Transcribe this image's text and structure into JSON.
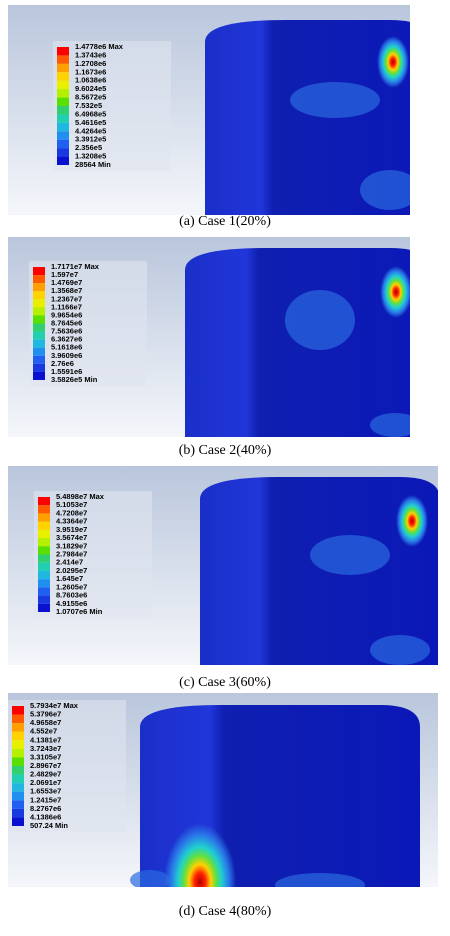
{
  "panels": [
    {
      "caption": "(a)  Case  1(20%)",
      "legend": [
        "1.4778e6 Max",
        "1.3743e6",
        "1.2708e6",
        "1.1673e6",
        "1.0638e6",
        "9.6024e5",
        "8.5672e5",
        "7.532e5",
        "6.4968e5",
        "5.4616e5",
        "4.4264e5",
        "3.3912e5",
        "2.356e5",
        "1.3208e5",
        "28564 Min"
      ]
    },
    {
      "caption": "(b)  Case  2(40%)",
      "legend": [
        "1.7171e7 Max",
        "1.597e7",
        "1.4769e7",
        "1.3568e7",
        "1.2367e7",
        "1.1166e7",
        "9.9654e6",
        "8.7645e6",
        "7.5636e6",
        "6.3627e6",
        "5.1618e6",
        "3.9609e6",
        "2.76e6",
        "1.5591e6",
        "3.5826e5 Min"
      ]
    },
    {
      "caption": "(c)  Case  3(60%)",
      "legend": [
        "5.4898e7 Max",
        "5.1053e7",
        "4.7208e7",
        "4.3364e7",
        "3.9519e7",
        "3.5674e7",
        "3.1829e7",
        "2.7984e7",
        "2.414e7",
        "2.0295e7",
        "1.645e7",
        "1.2605e7",
        "8.7603e6",
        "4.9155e6",
        "1.0707e6 Min"
      ]
    },
    {
      "caption": "(d)  Case  4(80%)",
      "legend": [
        "5.7934e7 Max",
        "5.3796e7",
        "4.9658e7",
        "4.552e7",
        "4.1381e7",
        "3.7243e7",
        "3.3105e7",
        "2.8967e7",
        "2.4829e7",
        "2.0691e7",
        "1.6553e7",
        "1.2415e7",
        "8.2767e6",
        "4.1386e6",
        "507.24 Min"
      ]
    }
  ]
}
